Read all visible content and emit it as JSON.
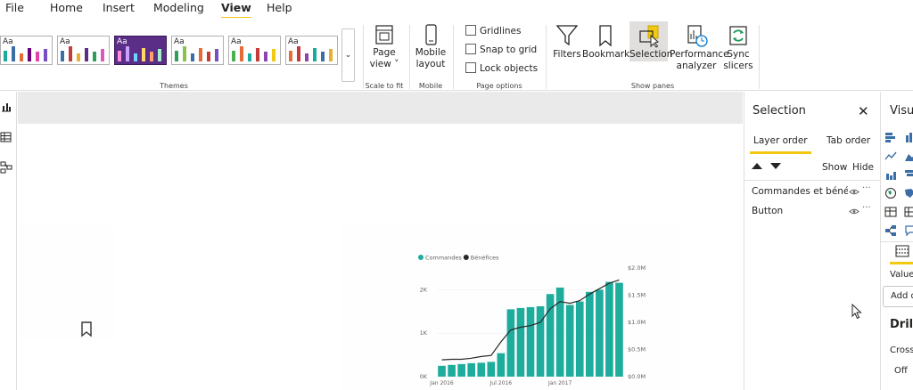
{
  "menu": {
    "items": [
      "File",
      "Home",
      "Insert",
      "Modeling",
      "View",
      "Help"
    ],
    "active": "View"
  },
  "ribbon": {
    "themes_label": "Themes",
    "theme_swatch": "Aa",
    "scale_group_label": "Scale to fit",
    "page_view": {
      "line1": "Page",
      "line2": "view ˅"
    },
    "mobile_group_label": "Mobile",
    "mobile_layout": {
      "line1": "Mobile",
      "line2": "layout"
    },
    "page_options_label": "Page options",
    "gridlines": "Gridlines",
    "snap_to_grid": "Snap to grid",
    "lock_objects": "Lock objects",
    "show_panes_label": "Show panes",
    "filters": "Filters",
    "bookmarks": "Bookmarks",
    "selection": "Selection",
    "performance": {
      "line1": "Performance",
      "line2": "analyzer"
    },
    "sync": {
      "line1": "Sync",
      "line2": "slicers"
    }
  },
  "selection_pane": {
    "title": "Selection",
    "tab_layer": "Layer order",
    "tab_tab": "Tab order",
    "show": "Show",
    "hide": "Hide",
    "layers": [
      "Commandes et bénéfices",
      "Button"
    ],
    "more": "···"
  },
  "vis_pane": {
    "title": "Visualizations",
    "values": "Values",
    "add": "Add data fields here",
    "drill": "Drill through",
    "cross": "Cross-report",
    "off": "Off"
  },
  "chart_data": {
    "type": "bar",
    "legend": [
      "Commandes",
      "Bénéfices"
    ],
    "legend_position": "top-left",
    "colors": {
      "bars": "#1aab9b",
      "line": "#252423"
    },
    "categories": [
      "2016-01",
      "2016-02",
      "2016-03",
      "2016-04",
      "2016-05",
      "2016-06",
      "2016-07",
      "2016-08",
      "2016-09",
      "2016-10",
      "2016-11",
      "2016-12",
      "2017-01",
      "2017-02",
      "2017-03",
      "2017-04",
      "2017-05",
      "2017-06",
      "2017-07"
    ],
    "series": [
      {
        "name": "Commandes",
        "axis": "left",
        "values": [
          250,
          270,
          290,
          310,
          320,
          340,
          540,
          1550,
          1580,
          1600,
          1620,
          1900,
          2050,
          1650,
          1730,
          1950,
          2000,
          2180,
          2160
        ]
      },
      {
        "name": "Bénéfices",
        "axis": "right",
        "type": "line",
        "values": [
          310000,
          320000,
          320000,
          340000,
          370000,
          390000,
          640000,
          860000,
          910000,
          940000,
          1000000,
          1250000,
          1380000,
          1350000,
          1400000,
          1520000,
          1620000,
          1720000,
          1780000
        ]
      }
    ],
    "x_tick_labels": [
      "Jan 2016",
      "Jul 2016",
      "Jan 2017"
    ],
    "y_left": {
      "ticks": [
        "0K",
        "1K",
        "2K"
      ],
      "min": 0,
      "max": 2500
    },
    "y_right": {
      "ticks": [
        "$0.0M",
        "$0.5M",
        "$1.0M",
        "$1.5M",
        "$2.0M"
      ],
      "min": 0,
      "max": 2000000
    }
  }
}
